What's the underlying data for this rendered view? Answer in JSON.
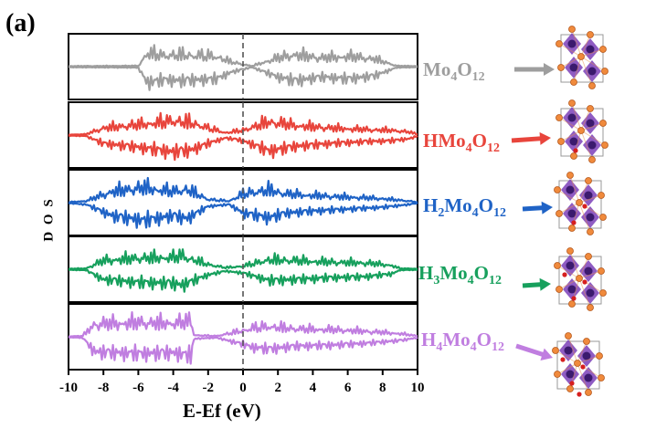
{
  "figure": {
    "panel_label": "(a)",
    "xlabel": "E-Ef (eV)",
    "ylabel": "D O S"
  },
  "chart_data": {
    "type": "line",
    "panel_label": "(a)",
    "xlabel": "E-Ef (eV)",
    "ylabel": "D O S",
    "xlim": [
      -10,
      10
    ],
    "xticks": [
      -10,
      -8,
      -6,
      -4,
      -2,
      0,
      2,
      4,
      6,
      8,
      10
    ],
    "fermi_level_line": 0,
    "grid": false,
    "legend": "none (series labels placed right of each panel with arrows to crystal structures)",
    "series": [
      {
        "name": "Mo4O12",
        "base": "Mo",
        "sub1": "4",
        "mid": "O",
        "sub2": "12",
        "color": "#9e9e9e",
        "x": [
          -10,
          -6.0,
          -5.5,
          -4.5,
          -3.5,
          -2.5,
          -1.5,
          -0.7,
          0.5,
          2.0,
          3.0,
          4.5,
          6.0,
          7.5,
          8.8,
          10
        ],
        "amplitude": [
          0.03,
          0.05,
          0.85,
          0.7,
          0.75,
          0.7,
          0.65,
          0.3,
          0.03,
          0.55,
          0.75,
          0.55,
          0.65,
          0.5,
          0.05,
          0.03
        ]
      },
      {
        "name": "HMo4O12",
        "base": "HMo",
        "sub1": "4",
        "mid": "O",
        "sub2": "12",
        "color": "#e8453c",
        "x": [
          -10,
          -9.0,
          -8.0,
          -6.0,
          -4.0,
          -3.0,
          -2.0,
          -1.0,
          0.0,
          1.5,
          3.0,
          5.0,
          7.0,
          8.5,
          9.5,
          10
        ],
        "amplitude": [
          0.03,
          0.05,
          0.45,
          0.65,
          0.9,
          0.8,
          0.45,
          0.15,
          0.3,
          0.85,
          0.6,
          0.45,
          0.35,
          0.3,
          0.2,
          0.05
        ]
      },
      {
        "name": "H2Mo4O12",
        "base": "H",
        "sub0": "2",
        "mid0": "Mo",
        "sub1": "4",
        "mid": "O",
        "sub2": "12",
        "color": "#1f63c6",
        "x": [
          -10,
          -9.0,
          -7.5,
          -5.7,
          -4.0,
          -3.2,
          -2.0,
          -0.8,
          0.0,
          1.5,
          2.5,
          4.0,
          6.0,
          8.0,
          9.5,
          10
        ],
        "amplitude": [
          0.03,
          0.1,
          0.7,
          0.95,
          0.7,
          0.85,
          0.2,
          0.1,
          0.55,
          0.8,
          0.55,
          0.45,
          0.35,
          0.25,
          0.1,
          0.03
        ]
      },
      {
        "name": "H3Mo4O12",
        "base": "H",
        "sub0": "3",
        "mid0": "Mo",
        "sub1": "4",
        "mid": "O",
        "sub2": "12",
        "color": "#17a05d",
        "x": [
          -10,
          -9.0,
          -8.0,
          -6.0,
          -4.0,
          -3.5,
          -2.0,
          -1.0,
          0.0,
          1.5,
          3.0,
          5.0,
          7.0,
          8.5,
          9.0,
          10
        ],
        "amplitude": [
          0.03,
          0.05,
          0.55,
          0.7,
          0.75,
          0.85,
          0.3,
          0.1,
          0.2,
          0.6,
          0.55,
          0.45,
          0.4,
          0.25,
          0.05,
          0.03
        ]
      },
      {
        "name": "H4Mo4O12",
        "base": "H",
        "sub0": "4",
        "mid0": "Mo",
        "sub1": "4",
        "mid": "O",
        "sub2": "12",
        "color": "#c07ee0",
        "x": [
          -10,
          -9.2,
          -8.5,
          -6.0,
          -4.0,
          -3.0,
          -2.8,
          -1.5,
          0.0,
          0.5,
          1.5,
          3.0,
          5.0,
          7.0,
          9.0,
          10
        ],
        "amplitude": [
          0.03,
          0.05,
          0.8,
          0.9,
          0.85,
          1.0,
          0.1,
          0.05,
          0.4,
          0.55,
          0.65,
          0.5,
          0.45,
          0.35,
          0.2,
          0.05
        ]
      }
    ]
  }
}
